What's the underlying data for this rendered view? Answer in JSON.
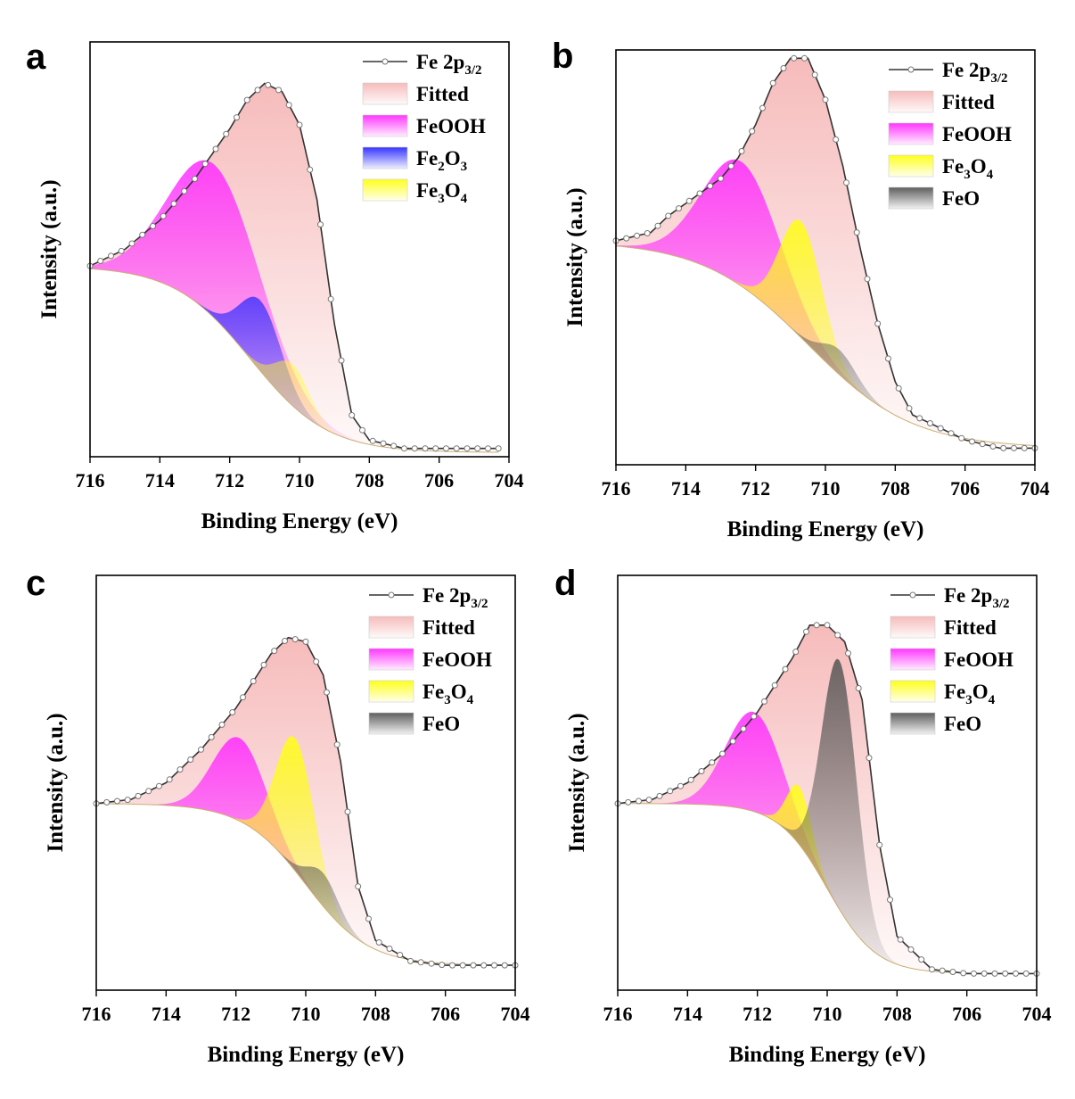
{
  "figure": {
    "panels": [
      "a",
      "b",
      "c",
      "d"
    ]
  },
  "colors": {
    "fitted": "#f6b8b8",
    "FeOOH": "#ff2bff",
    "Fe2O3": "#2a2aff",
    "Fe3O4": "#ffff10",
    "FeO": "#555555",
    "data_line": "#333333"
  },
  "chart_data": [
    {
      "panel": "a",
      "type": "line",
      "xlabel": "Binding Energy (eV)",
      "ylabel": "Intensity (a.u.)",
      "xlim": [
        716,
        704
      ],
      "x_reversed": true,
      "ylim": [
        0,
        1.0
      ],
      "xticks": [
        "716",
        "714",
        "712",
        "710",
        "708",
        "706",
        "704"
      ],
      "legend": [
        "Fe 2p3/2",
        "Fitted",
        "FeOOH",
        "Fe2O3",
        "Fe3O4"
      ],
      "legend_labels": [
        {
          "main": "Fe 2p",
          "sub": "3/2"
        },
        {
          "main": "Fitted"
        },
        {
          "main": "FeOOH"
        },
        {
          "main": "Fe",
          "sub": "2",
          "main2": "O",
          "sub2": "3"
        },
        {
          "main": "Fe",
          "sub": "3",
          "main2": "O",
          "sub2": "4"
        }
      ],
      "legend_keys": [
        "data",
        "fitted",
        "FeOOH",
        "Fe2O3",
        "Fe3O4"
      ],
      "x_end": 704.3,
      "series": [
        {
          "name": "Fe 2p3/2",
          "values": [
            [
              716,
              0.46
            ],
            [
              715,
              0.5
            ],
            [
              714,
              0.57
            ],
            [
              713,
              0.67
            ],
            [
              712,
              0.79
            ],
            [
              711.5,
              0.86
            ],
            [
              711,
              0.9
            ],
            [
              710.5,
              0.88
            ],
            [
              710,
              0.8
            ],
            [
              709.5,
              0.62
            ],
            [
              709,
              0.32
            ],
            [
              708.5,
              0.1
            ],
            [
              708,
              0.04
            ],
            [
              707,
              0.02
            ],
            [
              706,
              0.02
            ],
            [
              705,
              0.02
            ],
            [
              704.3,
              0.02
            ]
          ]
        }
      ],
      "baseline": {
        "high": 0.46,
        "low": 0.01,
        "center": 711.4,
        "width": 1.1
      },
      "components": [
        {
          "name": "FeOOH",
          "center": 712.4,
          "height": 0.37,
          "sigma": 1.3
        },
        {
          "name": "Fe2O3",
          "center": 711.1,
          "height": 0.17,
          "sigma": 0.6
        },
        {
          "name": "Fe3O4",
          "center": 710.2,
          "height": 0.1,
          "sigma": 0.5
        }
      ]
    },
    {
      "panel": "b",
      "type": "line",
      "xlabel": "Binding Energy (eV)",
      "ylabel": "Intensity (a.u.)",
      "xlim": [
        716,
        704
      ],
      "x_reversed": true,
      "ylim": [
        0,
        1.0
      ],
      "xticks": [
        "716",
        "714",
        "712",
        "710",
        "708",
        "706",
        "704"
      ],
      "legend": [
        "Fe 2p3/2",
        "Fitted",
        "FeOOH",
        "Fe3O4",
        "FeO"
      ],
      "legend_labels": [
        {
          "main": "Fe 2p",
          "sub": "3/2"
        },
        {
          "main": "Fitted"
        },
        {
          "main": "FeOOH"
        },
        {
          "main": "Fe",
          "sub": "3",
          "main2": "O",
          "sub2": "4"
        },
        {
          "main": "FeO"
        }
      ],
      "legend_keys": [
        "data",
        "fitted",
        "FeOOH",
        "Fe3O4",
        "FeO"
      ],
      "x_end": 704,
      "series": [
        {
          "name": "Fe 2p3/2",
          "values": [
            [
              716,
              0.54
            ],
            [
              715,
              0.56
            ],
            [
              714.5,
              0.6
            ],
            [
              714,
              0.63
            ],
            [
              713.5,
              0.66
            ],
            [
              713,
              0.69
            ],
            [
              712.5,
              0.74
            ],
            [
              712,
              0.82
            ],
            [
              711.5,
              0.92
            ],
            [
              711,
              0.98
            ],
            [
              710.5,
              0.98
            ],
            [
              710,
              0.88
            ],
            [
              709.5,
              0.72
            ],
            [
              709,
              0.52
            ],
            [
              708.5,
              0.34
            ],
            [
              708,
              0.2
            ],
            [
              707.5,
              0.12
            ],
            [
              707,
              0.1
            ],
            [
              706,
              0.06
            ],
            [
              705,
              0.04
            ],
            [
              704,
              0.04
            ]
          ]
        }
      ],
      "baseline": {
        "high": 0.54,
        "low": 0.04,
        "center": 710.5,
        "width": 1.5
      },
      "components": [
        {
          "name": "FeOOH",
          "center": 712.4,
          "height": 0.3,
          "sigma": 1.1
        },
        {
          "name": "Fe3O4",
          "center": 710.7,
          "height": 0.28,
          "sigma": 0.6
        },
        {
          "name": "FeO",
          "center": 709.6,
          "height": 0.06,
          "sigma": 0.5
        }
      ]
    },
    {
      "panel": "c",
      "type": "line",
      "xlabel": "Binding Energy (eV)",
      "ylabel": "Intensity (a.u.)",
      "xlim": [
        716,
        704
      ],
      "x_reversed": true,
      "ylim": [
        0,
        1.0
      ],
      "xticks": [
        "716",
        "714",
        "712",
        "710",
        "708",
        "706",
        "704"
      ],
      "legend": [
        "Fe 2p3/2",
        "Fitted",
        "FeOOH",
        "Fe3O4",
        "FeO"
      ],
      "legend_labels": [
        {
          "main": "Fe 2p",
          "sub": "3/2"
        },
        {
          "main": "Fitted"
        },
        {
          "main": "FeOOH"
        },
        {
          "main": "Fe",
          "sub": "3",
          "main2": "O",
          "sub2": "4"
        },
        {
          "main": "FeO"
        }
      ],
      "legend_keys": [
        "data",
        "fitted",
        "FeOOH",
        "Fe3O4",
        "FeO"
      ],
      "x_end": 704,
      "series": [
        {
          "name": "Fe 2p3/2",
          "values": [
            [
              716,
              0.45
            ],
            [
              715,
              0.46
            ],
            [
              714,
              0.5
            ],
            [
              713,
              0.58
            ],
            [
              712,
              0.68
            ],
            [
              711,
              0.81
            ],
            [
              710.5,
              0.85
            ],
            [
              710,
              0.84
            ],
            [
              709.5,
              0.76
            ],
            [
              709,
              0.55
            ],
            [
              708.5,
              0.25
            ],
            [
              708,
              0.12
            ],
            [
              707,
              0.07
            ],
            [
              706,
              0.06
            ],
            [
              705,
              0.06
            ],
            [
              704,
              0.06
            ]
          ]
        }
      ],
      "baseline": {
        "high": 0.45,
        "low": 0.06,
        "center": 710.0,
        "width": 0.9
      },
      "components": [
        {
          "name": "FeOOH",
          "center": 711.9,
          "height": 0.2,
          "sigma": 0.75
        },
        {
          "name": "Fe3O4",
          "center": 710.3,
          "height": 0.32,
          "sigma": 0.55
        },
        {
          "name": "FeO",
          "center": 709.5,
          "height": 0.08,
          "sigma": 0.45
        }
      ]
    },
    {
      "panel": "d",
      "type": "line",
      "xlabel": "Binding Energy (eV)",
      "ylabel": "Intensity (a.u.)",
      "xlim": [
        716,
        704
      ],
      "x_reversed": true,
      "ylim": [
        0,
        1.0
      ],
      "xticks": [
        "716",
        "714",
        "712",
        "710",
        "708",
        "706",
        "704"
      ],
      "legend": [
        "Fe 2p3/2",
        "Fitted",
        "FeOOH",
        "Fe3O4",
        "FeO"
      ],
      "legend_labels": [
        {
          "main": "Fe 2p",
          "sub": "3/2"
        },
        {
          "main": "Fitted"
        },
        {
          "main": "FeOOH"
        },
        {
          "main": "Fe",
          "sub": "3",
          "main2": "O",
          "sub2": "4"
        },
        {
          "main": "FeO"
        }
      ],
      "legend_keys": [
        "data",
        "fitted",
        "FeOOH",
        "Fe3O4",
        "FeO"
      ],
      "x_end": 704,
      "series": [
        {
          "name": "Fe 2p3/2",
          "values": [
            [
              716,
              0.45
            ],
            [
              715,
              0.46
            ],
            [
              714,
              0.5
            ],
            [
              713,
              0.57
            ],
            [
              712,
              0.67
            ],
            [
              711,
              0.8
            ],
            [
              710.5,
              0.88
            ],
            [
              710,
              0.88
            ],
            [
              709.5,
              0.84
            ],
            [
              709,
              0.7
            ],
            [
              708.5,
              0.35
            ],
            [
              708,
              0.13
            ],
            [
              707,
              0.05
            ],
            [
              706,
              0.04
            ],
            [
              705,
              0.04
            ],
            [
              704,
              0.04
            ]
          ]
        }
      ],
      "baseline": {
        "high": 0.45,
        "low": 0.04,
        "center": 710.0,
        "width": 0.7
      },
      "components": [
        {
          "name": "FeOOH",
          "center": 712.1,
          "height": 0.24,
          "sigma": 0.8
        },
        {
          "name": "Fe3O4",
          "center": 710.8,
          "height": 0.14,
          "sigma": 0.35
        },
        {
          "name": "FeO",
          "center": 709.65,
          "height": 0.6,
          "sigma": 0.5
        }
      ]
    }
  ]
}
